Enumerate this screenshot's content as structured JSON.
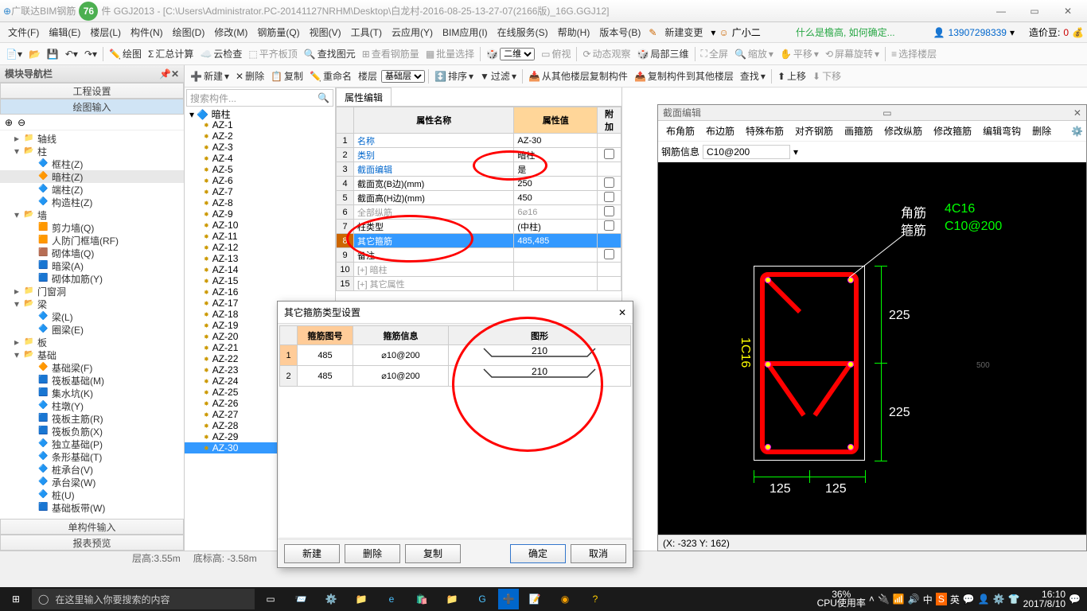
{
  "titlebar": {
    "badge": "76",
    "appname": "广联达BIM钢筋",
    "suffix": "件 GGJ2013 - [C:\\Users\\Administrator.PC-20141127NRHM\\Desktop\\白龙村-2016-08-25-13-27-07(2166版)_16G.GGJ12]"
  },
  "menubar": {
    "items": [
      "文件(F)",
      "编辑(E)",
      "楼层(L)",
      "构件(N)",
      "绘图(D)",
      "修改(M)",
      "钢筋量(Q)",
      "视图(V)",
      "工具(T)",
      "云应用(Y)",
      "BIM应用(I)",
      "在线服务(S)",
      "帮助(H)",
      "版本号(B)"
    ],
    "new_change": "新建变更",
    "user": "广小二",
    "hint": "什么是檐高, 如何确定...",
    "phone": "13907298339",
    "coins_label": "造价豆:",
    "coins": "0"
  },
  "toolbar1": {
    "items": [
      "绘图",
      "汇总计算",
      "云检查",
      "平齐板顶",
      "查找图元",
      "查看钢筋量",
      "批量选择",
      "二维",
      "俯视",
      "动态观察",
      "局部三维",
      "全屏",
      "缩放",
      "平移",
      "屏幕旋转",
      "选择楼层"
    ]
  },
  "toolbar2": {
    "items": [
      "新建",
      "删除",
      "复制",
      "重命名",
      "楼层",
      "基础层",
      "排序",
      "过滤",
      "从其他楼层复制构件",
      "复制构件到其他楼层",
      "查找",
      "上移",
      "下移"
    ]
  },
  "sidebar": {
    "header": "模块导航栏",
    "sections": [
      "工程设置",
      "绘图输入",
      "单构件输入",
      "报表预览"
    ],
    "tree": [
      {
        "label": "轴线",
        "level": 1,
        "exp": "▸",
        "icon": "📁"
      },
      {
        "label": "柱",
        "level": 1,
        "exp": "▾",
        "icon": "📂"
      },
      {
        "label": "框柱(Z)",
        "level": 2,
        "icon": "🔷"
      },
      {
        "label": "暗柱(Z)",
        "level": 2,
        "icon": "🔶",
        "hl": true
      },
      {
        "label": "端柱(Z)",
        "level": 2,
        "icon": "🔷"
      },
      {
        "label": "构造柱(Z)",
        "level": 2,
        "icon": "🔷"
      },
      {
        "label": "墙",
        "level": 1,
        "exp": "▾",
        "icon": "📂"
      },
      {
        "label": "剪力墙(Q)",
        "level": 2,
        "icon": "🟧"
      },
      {
        "label": "人防门框墙(RF)",
        "level": 2,
        "icon": "🟧"
      },
      {
        "label": "砌体墙(Q)",
        "level": 2,
        "icon": "🟫"
      },
      {
        "label": "暗梁(A)",
        "level": 2,
        "icon": "🟦"
      },
      {
        "label": "砌体加筋(Y)",
        "level": 2,
        "icon": "🟦"
      },
      {
        "label": "门窗洞",
        "level": 1,
        "exp": "▸",
        "icon": "📁"
      },
      {
        "label": "梁",
        "level": 1,
        "exp": "▾",
        "icon": "📂"
      },
      {
        "label": "梁(L)",
        "level": 2,
        "icon": "🔷"
      },
      {
        "label": "圈梁(E)",
        "level": 2,
        "icon": "🔷"
      },
      {
        "label": "板",
        "level": 1,
        "exp": "▸",
        "icon": "📁"
      },
      {
        "label": "基础",
        "level": 1,
        "exp": "▾",
        "icon": "📂"
      },
      {
        "label": "基础梁(F)",
        "level": 2,
        "icon": "🔶"
      },
      {
        "label": "筏板基础(M)",
        "level": 2,
        "icon": "🟦"
      },
      {
        "label": "集水坑(K)",
        "level": 2,
        "icon": "🟦"
      },
      {
        "label": "柱墩(Y)",
        "level": 2,
        "icon": "🔷"
      },
      {
        "label": "筏板主筋(R)",
        "level": 2,
        "icon": "🟦"
      },
      {
        "label": "筏板负筋(X)",
        "level": 2,
        "icon": "🟦"
      },
      {
        "label": "独立基础(P)",
        "level": 2,
        "icon": "🔷"
      },
      {
        "label": "条形基础(T)",
        "level": 2,
        "icon": "🔷"
      },
      {
        "label": "桩承台(V)",
        "level": 2,
        "icon": "🔷"
      },
      {
        "label": "承台梁(W)",
        "level": 2,
        "icon": "🔷"
      },
      {
        "label": "桩(U)",
        "level": 2,
        "icon": "🔷"
      },
      {
        "label": "基础板带(W)",
        "level": 2,
        "icon": "🟦"
      }
    ]
  },
  "midtree": {
    "search_placeholder": "搜索构件...",
    "root": "暗柱",
    "items": [
      "AZ-1",
      "AZ-2",
      "AZ-3",
      "AZ-4",
      "AZ-5",
      "AZ-6",
      "AZ-7",
      "AZ-8",
      "AZ-9",
      "AZ-10",
      "AZ-11",
      "AZ-12",
      "AZ-13",
      "AZ-14",
      "AZ-15",
      "AZ-16",
      "AZ-17",
      "AZ-18",
      "AZ-19",
      "AZ-20",
      "AZ-21",
      "AZ-22",
      "AZ-23",
      "AZ-24",
      "AZ-25",
      "AZ-26",
      "AZ-27",
      "AZ-28",
      "AZ-29",
      "AZ-30"
    ],
    "selected": "AZ-30"
  },
  "proptable": {
    "tab": "属性编辑",
    "cols": [
      "属性名称",
      "属性值",
      "附加"
    ],
    "rows": [
      {
        "n": "1",
        "name": "名称",
        "val": "AZ-30",
        "link": true
      },
      {
        "n": "2",
        "name": "类别",
        "val": "暗柱",
        "link": true,
        "chk": true
      },
      {
        "n": "3",
        "name": "截面编辑",
        "val": "是",
        "link": true
      },
      {
        "n": "4",
        "name": "截面宽(B边)(mm)",
        "val": "250",
        "chk": true
      },
      {
        "n": "5",
        "name": "截面高(H边)(mm)",
        "val": "450",
        "chk": true
      },
      {
        "n": "6",
        "name": "全部纵筋",
        "val": "6⌀16",
        "gray": true,
        "chk": true
      },
      {
        "n": "7",
        "name": "柱类型",
        "val": "(中柱)",
        "chk": true
      },
      {
        "n": "8",
        "name": "其它箍筋",
        "val": "485,485",
        "sel": true
      },
      {
        "n": "9",
        "name": "备注",
        "val": "",
        "chk": true
      },
      {
        "n": "10",
        "name": "暗柱",
        "val": "",
        "gray": true,
        "exp": "+"
      },
      {
        "n": "15",
        "name": "其它属性",
        "val": "",
        "gray": true,
        "exp": "+"
      }
    ]
  },
  "dialog": {
    "title": "其它箍筋类型设置",
    "cols": [
      "箍筋图号",
      "箍筋信息",
      "图形"
    ],
    "rows": [
      {
        "n": "1",
        "code": "485",
        "info": "⌀10@200",
        "shape": "210"
      },
      {
        "n": "2",
        "code": "485",
        "info": "⌀10@200",
        "shape": "210"
      }
    ],
    "btns": {
      "new": "新建",
      "del": "删除",
      "copy": "复制",
      "ok": "确定",
      "cancel": "取消"
    }
  },
  "section": {
    "title": "截面编辑",
    "toolbar": [
      "布角筋",
      "布边筋",
      "特殊布筋",
      "对齐钢筋",
      "画箍筋",
      "修改纵筋",
      "修改箍筋",
      "编辑弯钩",
      "删除"
    ],
    "bar2_label": "钢筋信息",
    "bar2_value": "C10@200",
    "labels": {
      "jiao": "角筋",
      "gu": "箍筋",
      "jiao_val": "4C16",
      "gu_val": "C10@200",
      "d225": "225",
      "d125": "125",
      "v1c16": "1C16",
      "d500": "500"
    },
    "status": "(X: -323 Y: 162)"
  },
  "statusbar": {
    "left": "层高:3.55m",
    "mid": "底标高: -3.58m"
  },
  "taskbar": {
    "search": "在这里输入你要搜索的内容",
    "cpu_pct": "36%",
    "cpu_label": "CPU使用率",
    "ime": "英",
    "ime2": "中",
    "time": "16:10",
    "date": "2017/8/10"
  }
}
